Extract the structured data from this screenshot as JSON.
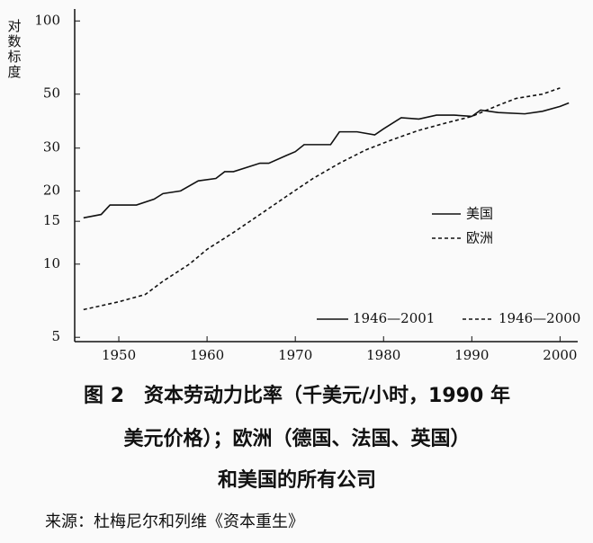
{
  "chart_data": {
    "type": "line",
    "y_label": "对数标度",
    "x": [
      1946,
      1948,
      1949,
      1952,
      1954,
      1955,
      1957,
      1959,
      1961,
      1962,
      1963,
      1966,
      1967,
      1969,
      1970,
      1971,
      1974,
      1975,
      1977,
      1979,
      1980,
      1982,
      1984,
      1986,
      1988,
      1990,
      1991,
      1993,
      1996,
      1998,
      2000,
      2001
    ],
    "series": [
      {
        "name": "美国",
        "period": "1946—2001",
        "color": "#111111",
        "dash": "solid",
        "values": [
          15.5,
          16,
          17.5,
          17.5,
          18.5,
          19.5,
          20,
          22,
          22.5,
          24,
          24,
          26,
          26,
          28,
          29,
          31,
          31,
          35,
          35,
          34,
          36,
          40,
          39.5,
          41,
          41,
          40.5,
          43,
          42,
          41.5,
          42.5,
          44.5,
          46
        ]
      },
      {
        "name": "欧洲",
        "period": "1946—2000",
        "color": "#111111",
        "dash": "dashed",
        "x": [
          1946,
          1950,
          1953,
          1955,
          1958,
          1960,
          1963,
          1966,
          1969,
          1972,
          1975,
          1978,
          1981,
          1984,
          1987,
          1990,
          1993,
          1995,
          1998,
          2000
        ],
        "values": [
          6.5,
          7,
          7.5,
          8.5,
          10,
          11.5,
          13.5,
          16,
          19,
          22.5,
          26,
          29.5,
          32.5,
          35.5,
          38,
          40.5,
          45,
          48,
          50,
          53
        ]
      }
    ],
    "xlim": [
      1945,
      2002
    ],
    "xticks": [
      1950,
      1960,
      1970,
      1980,
      1990,
      2000
    ],
    "ylim": [
      4.8,
      112
    ],
    "yticks": [
      5,
      10,
      15,
      20,
      30,
      50,
      100
    ],
    "log_y": true
  },
  "caption": [
    "图 2　资本劳动力比率（千美元/小时，1990 年",
    "美元价格）；欧洲（德国、法国、英国）",
    "和美国的所有公司"
  ],
  "source": "来源：杜梅尼尔和列维《资本重生》"
}
